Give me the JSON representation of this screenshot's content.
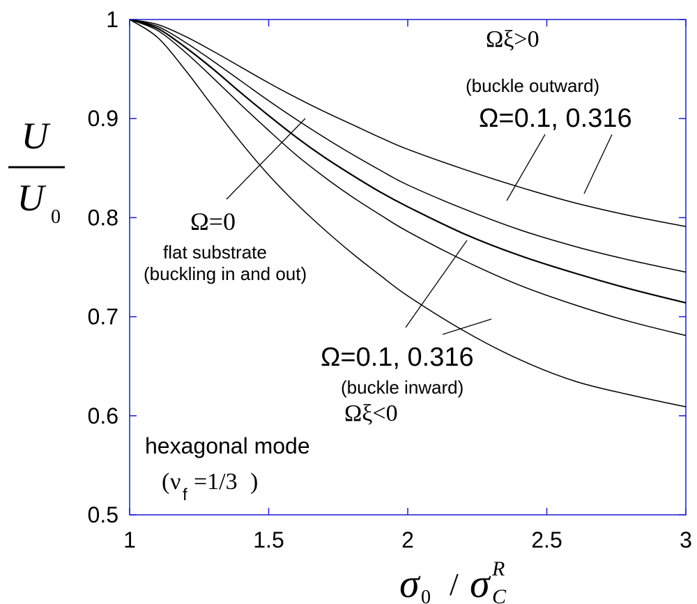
{
  "chart_data": {
    "type": "line",
    "xlabel": {
      "main": "σ0 / σC",
      "sub0": "0",
      "sup": "R",
      "sub": "C",
      "sigma": "σ",
      "slash": "/"
    },
    "ylabel": {
      "num": "U",
      "den": "U",
      "den_sub": "0"
    },
    "xlim": [
      1,
      3
    ],
    "ylim": [
      0.5,
      1
    ],
    "x_ticks": [
      "1",
      "1.5",
      "2",
      "2.5",
      "3"
    ],
    "y_ticks": [
      "0.5",
      "0.6",
      "0.7",
      "0.8",
      "0.9",
      "1"
    ],
    "grid": false,
    "frame_color": "#1a1acc",
    "line_color": "#000000",
    "series": [
      {
        "x": [
          1,
          1.1,
          1.2,
          1.3,
          1.4,
          1.5,
          1.6,
          1.7,
          1.8,
          1.9,
          2.0,
          2.2,
          2.4,
          2.6,
          2.8,
          3.0
        ],
        "values": [
          1.0,
          0.995,
          0.983,
          0.968,
          0.952,
          0.936,
          0.921,
          0.907,
          0.894,
          0.881,
          0.869,
          0.849,
          0.831,
          0.815,
          0.802,
          0.791
        ]
      },
      {
        "x": [
          1,
          1.1,
          1.2,
          1.3,
          1.4,
          1.5,
          1.6,
          1.7,
          1.8,
          1.9,
          2.0,
          2.2,
          2.4,
          2.6,
          2.8,
          3.0
        ],
        "values": [
          1.0,
          0.993,
          0.977,
          0.958,
          0.938,
          0.918,
          0.899,
          0.881,
          0.864,
          0.848,
          0.833,
          0.809,
          0.788,
          0.771,
          0.757,
          0.745
        ]
      },
      {
        "x": [
          1,
          1.1,
          1.2,
          1.3,
          1.4,
          1.5,
          1.6,
          1.7,
          1.8,
          1.9,
          2.0,
          2.2,
          2.4,
          2.6,
          2.8,
          3.0
        ],
        "values": [
          1.0,
          0.991,
          0.972,
          0.95,
          0.926,
          0.903,
          0.881,
          0.861,
          0.843,
          0.826,
          0.811,
          0.784,
          0.762,
          0.744,
          0.728,
          0.714
        ]
      },
      {
        "x": [
          1,
          1.1,
          1.2,
          1.3,
          1.4,
          1.5,
          1.6,
          1.7,
          1.8,
          1.9,
          2.0,
          2.2,
          2.4,
          2.6,
          2.8,
          3.0
        ],
        "values": [
          1.0,
          0.989,
          0.967,
          0.941,
          0.914,
          0.888,
          0.863,
          0.841,
          0.821,
          0.803,
          0.786,
          0.757,
          0.732,
          0.712,
          0.695,
          0.681
        ]
      },
      {
        "x": [
          1,
          1.1,
          1.2,
          1.3,
          1.4,
          1.5,
          1.6,
          1.7,
          1.8,
          1.9,
          2.0,
          2.2,
          2.4,
          2.6,
          2.8,
          3.0
        ],
        "values": [
          1.0,
          0.982,
          0.949,
          0.912,
          0.876,
          0.843,
          0.814,
          0.788,
          0.764,
          0.742,
          0.721,
          0.686,
          0.657,
          0.635,
          0.621,
          0.609
        ]
      }
    ],
    "annotations": {
      "outward_title": "Ωξ>0",
      "outward_sub": "(buckle outward)",
      "outward_omega": "Ω=0.1, 0.316",
      "flat_omega": "Ω=0",
      "flat_sub1": "flat substrate",
      "flat_sub2": "(buckling in and out)",
      "inward_omega": "Ω=0.1, 0.316",
      "inward_sub": "(buckle inward)",
      "inward_title": "Ωξ<0",
      "mode_label": "hexagonal mode",
      "nu_symbol": "ν",
      "nu_sub": "f",
      "nu_value": "=1/3",
      "nu_open": "(",
      "nu_close": ")"
    }
  }
}
